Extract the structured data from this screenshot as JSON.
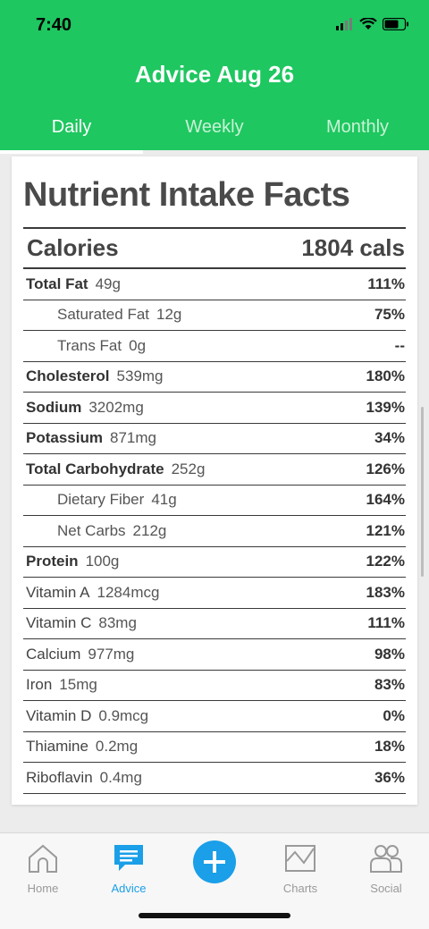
{
  "status": {
    "time": "7:40"
  },
  "header": {
    "title": "Advice Aug 26",
    "tabs": [
      {
        "label": "Daily",
        "active": true
      },
      {
        "label": "Weekly",
        "active": false
      },
      {
        "label": "Monthly",
        "active": false
      }
    ]
  },
  "facts": {
    "title": "Nutrient Intake Facts",
    "calories": {
      "label": "Calories",
      "value": "1804 cals"
    },
    "rows": [
      {
        "name": "Total Fat",
        "amount": "49g",
        "pct": "111%"
      },
      {
        "name": "Saturated Fat",
        "amount": "12g",
        "pct": "75%"
      },
      {
        "name": "Trans Fat",
        "amount": "0g",
        "pct": "--"
      },
      {
        "name": "Cholesterol",
        "amount": "539mg",
        "pct": "180%"
      },
      {
        "name": "Sodium",
        "amount": "3202mg",
        "pct": "139%"
      },
      {
        "name": "Potassium",
        "amount": "871mg",
        "pct": "34%"
      },
      {
        "name": "Total Carbohydrate",
        "amount": "252g",
        "pct": "126%"
      },
      {
        "name": "Dietary Fiber",
        "amount": "41g",
        "pct": "164%"
      },
      {
        "name": "Net Carbs",
        "amount": "212g",
        "pct": "121%"
      },
      {
        "name": "Protein",
        "amount": "100g",
        "pct": "122%"
      },
      {
        "name": "Vitamin A",
        "amount": "1284mcg",
        "pct": "183%"
      },
      {
        "name": "Vitamin C",
        "amount": "83mg",
        "pct": "111%"
      },
      {
        "name": "Calcium",
        "amount": "977mg",
        "pct": "98%"
      },
      {
        "name": "Iron",
        "amount": "15mg",
        "pct": "83%"
      },
      {
        "name": "Vitamin D",
        "amount": "0.9mcg",
        "pct": "0%"
      },
      {
        "name": "Thiamine",
        "amount": "0.2mg",
        "pct": "18%"
      },
      {
        "name": "Riboflavin",
        "amount": "0.4mg",
        "pct": "36%"
      }
    ]
  },
  "tabbar": {
    "home": "Home",
    "advice": "Advice",
    "charts": "Charts",
    "social": "Social"
  },
  "colors": {
    "brand": "#1ec760",
    "accent": "#1a9fe8"
  }
}
